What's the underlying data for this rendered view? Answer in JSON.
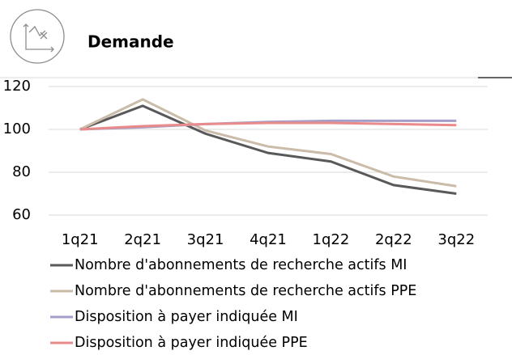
{
  "header": {
    "title": "Demande"
  },
  "chart_data": {
    "type": "line",
    "categories": [
      "1q21",
      "2q21",
      "3q21",
      "4q21",
      "1q22",
      "2q22",
      "3q22"
    ],
    "series": [
      {
        "name": "Nombre d'abonnements de recherche actifs MI",
        "color": "#595959",
        "values": [
          100,
          111,
          98,
          89,
          85,
          74,
          70
        ]
      },
      {
        "name": "Nombre d'abonnements de recherche actifs PPE",
        "color": "#cbbba9",
        "values": [
          100,
          114,
          99.5,
          92,
          88.5,
          78,
          73.5
        ]
      },
      {
        "name": "Disposition à payer indiquée MI",
        "color": "#a59ec8",
        "values": [
          100,
          101,
          102.5,
          103.5,
          104,
          104,
          104
        ]
      },
      {
        "name": "Disposition à payer indiquée PPE",
        "color": "#e98a8b",
        "values": [
          100,
          101.5,
          102.5,
          103,
          103,
          102.5,
          102
        ]
      }
    ],
    "ylim": [
      60,
      120
    ],
    "yticks": [
      60,
      80,
      100,
      120
    ],
    "grid": true,
    "legend": "bottom"
  }
}
